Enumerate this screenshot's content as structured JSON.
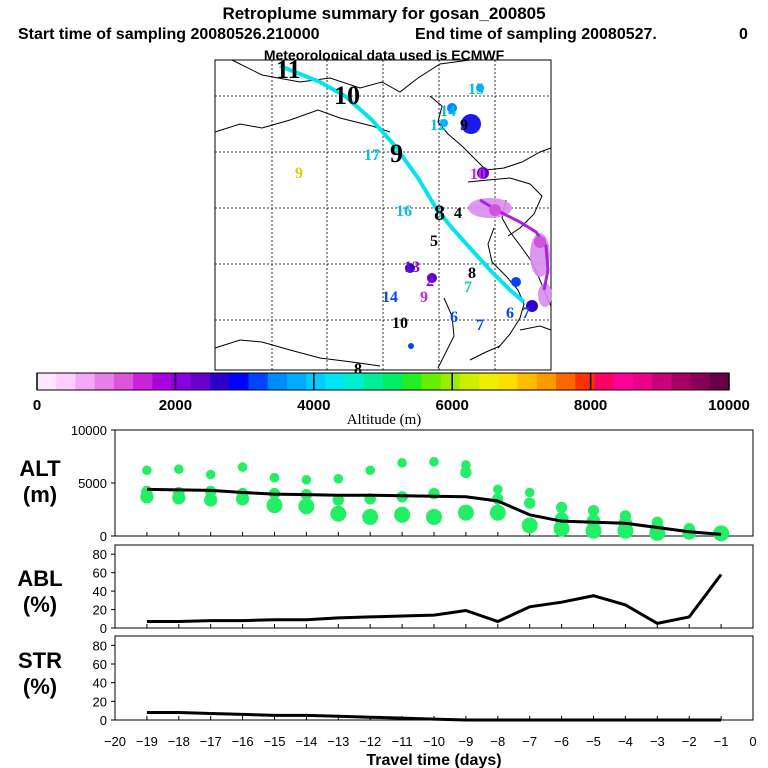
{
  "header": {
    "title": "Retroplume summary for gosan_200805",
    "start": "Start time of sampling 20080526.210000",
    "end": "End time of sampling 20080527.",
    "end_tail": "0",
    "met": "Meteorological data used is ECMWF"
  },
  "colorbar": {
    "label": "Altitude (m)",
    "ticks": [
      "0",
      "2000",
      "4000",
      "6000",
      "8000",
      "10000"
    ],
    "colors": [
      "#ffe6ff",
      "#ffccff",
      "#f5a8f5",
      "#ea7fea",
      "#dd55dd",
      "#cc22dd",
      "#aa00dd",
      "#8800dd",
      "#6600cc",
      "#2a00cc",
      "#0000ff",
      "#0044ff",
      "#0088ff",
      "#00aaff",
      "#00ccff",
      "#00e6ee",
      "#00eecc",
      "#00ee99",
      "#00ee66",
      "#22ee22",
      "#66ee00",
      "#99ee00",
      "#ccee00",
      "#eeee00",
      "#ffdd00",
      "#ffbb00",
      "#ff9900",
      "#ff6600",
      "#ff3300",
      "#ff0066",
      "#ff0099",
      "#ee0088",
      "#cc0077",
      "#aa0066",
      "#880055",
      "#660044"
    ]
  },
  "map": {
    "labels": [
      {
        "t": "11",
        "c": "#000000",
        "s": 26
      },
      {
        "t": "10",
        "c": "#000000",
        "s": 26
      },
      {
        "t": "15",
        "c": "#00bbee",
        "s": 16
      },
      {
        "t": "14",
        "c": "#00bbee",
        "s": 16
      },
      {
        "t": "12",
        "c": "#00bbee",
        "s": 16
      },
      {
        "t": "9",
        "c": "#000000",
        "s": 16
      },
      {
        "t": "17",
        "c": "#00bbee",
        "s": 16
      },
      {
        "t": "9",
        "c": "#000000",
        "s": 26
      },
      {
        "t": "9",
        "c": "#ddcc00",
        "s": 16
      },
      {
        "t": "10",
        "c": "#cc22dd",
        "s": 16
      },
      {
        "t": "16",
        "c": "#00bbee",
        "s": 16
      },
      {
        "t": "8",
        "c": "#000000",
        "s": 22
      },
      {
        "t": "4",
        "c": "#000000",
        "s": 16
      },
      {
        "t": "5",
        "c": "#000000",
        "s": 16
      },
      {
        "t": "13",
        "c": "#8800dd",
        "s": 16
      },
      {
        "t": "2",
        "c": "#8800dd",
        "s": 16
      },
      {
        "t": "8",
        "c": "#000000",
        "s": 16
      },
      {
        "t": "7",
        "c": "#00ddaa",
        "s": 16
      },
      {
        "t": "14",
        "c": "#0044ff",
        "s": 16
      },
      {
        "t": "9",
        "c": "#cc22dd",
        "s": 16
      },
      {
        "t": "10",
        "c": "#000000",
        "s": 16
      },
      {
        "t": "6",
        "c": "#0044ff",
        "s": 16
      },
      {
        "t": "7",
        "c": "#0044ff",
        "s": 16
      },
      {
        "t": "6",
        "c": "#0044ff",
        "s": 16
      },
      {
        "t": "7",
        "c": "#0044ff",
        "s": 16
      },
      {
        "t": "8",
        "c": "#000000",
        "s": 16
      }
    ]
  },
  "chart_data": [
    {
      "type": "scatter",
      "panel": "ALT",
      "ylabel": "ALT (m)",
      "ylim": [
        0,
        10000
      ],
      "yticks": [
        "0",
        "5000",
        "10000"
      ],
      "xlim": [
        -20,
        0
      ],
      "median_line": {
        "x": [
          -19,
          -18,
          -17,
          -16,
          -15,
          -14,
          -13,
          -12,
          -11,
          -10,
          -9,
          -8,
          -7,
          -6,
          -5,
          -4,
          -3,
          -2,
          -1
        ],
        "y": [
          4400,
          4350,
          4300,
          4100,
          3950,
          3900,
          3850,
          3850,
          3800,
          3750,
          3700,
          3300,
          2000,
          1400,
          1300,
          1200,
          800,
          400,
          150
        ]
      },
      "points": [
        {
          "x": -19,
          "y": 6200
        },
        {
          "x": -19,
          "y": 4200
        },
        {
          "x": -19,
          "y": 3700
        },
        {
          "x": -18,
          "y": 6300
        },
        {
          "x": -18,
          "y": 4100
        },
        {
          "x": -18,
          "y": 3600
        },
        {
          "x": -17,
          "y": 5800
        },
        {
          "x": -17,
          "y": 4200
        },
        {
          "x": -17,
          "y": 3400
        },
        {
          "x": -16,
          "y": 6500
        },
        {
          "x": -16,
          "y": 4000
        },
        {
          "x": -16,
          "y": 3500
        },
        {
          "x": -15,
          "y": 5500
        },
        {
          "x": -15,
          "y": 4000
        },
        {
          "x": -15,
          "y": 2900
        },
        {
          "x": -14,
          "y": 5300
        },
        {
          "x": -14,
          "y": 3900
        },
        {
          "x": -14,
          "y": 2800
        },
        {
          "x": -13,
          "y": 5400
        },
        {
          "x": -13,
          "y": 3400
        },
        {
          "x": -13,
          "y": 2100
        },
        {
          "x": -12,
          "y": 6200
        },
        {
          "x": -12,
          "y": 3500
        },
        {
          "x": -12,
          "y": 1800
        },
        {
          "x": -11,
          "y": 6900
        },
        {
          "x": -11,
          "y": 3700
        },
        {
          "x": -11,
          "y": 2000
        },
        {
          "x": -10,
          "y": 7000
        },
        {
          "x": -10,
          "y": 4000
        },
        {
          "x": -10,
          "y": 1800
        },
        {
          "x": -9,
          "y": 6700
        },
        {
          "x": -9,
          "y": 6000
        },
        {
          "x": -9,
          "y": 2200
        },
        {
          "x": -8,
          "y": 4400
        },
        {
          "x": -8,
          "y": 3500
        },
        {
          "x": -8,
          "y": 2200
        },
        {
          "x": -7,
          "y": 4100
        },
        {
          "x": -7,
          "y": 3100
        },
        {
          "x": -7,
          "y": 1000
        },
        {
          "x": -6,
          "y": 2700
        },
        {
          "x": -6,
          "y": 1600
        },
        {
          "x": -6,
          "y": 700
        },
        {
          "x": -5,
          "y": 2400
        },
        {
          "x": -5,
          "y": 1400
        },
        {
          "x": -5,
          "y": 500
        },
        {
          "x": -4,
          "y": 1900
        },
        {
          "x": -4,
          "y": 1200
        },
        {
          "x": -4,
          "y": 500
        },
        {
          "x": -3,
          "y": 1300
        },
        {
          "x": -3,
          "y": 700
        },
        {
          "x": -3,
          "y": 300
        },
        {
          "x": -2,
          "y": 700
        },
        {
          "x": -2,
          "y": 300
        },
        {
          "x": -1,
          "y": 250
        }
      ]
    },
    {
      "type": "line",
      "panel": "ABL",
      "ylabel": "ABL (%)",
      "ylim": [
        0,
        90
      ],
      "yticks": [
        "0",
        "20",
        "40",
        "60",
        "80"
      ],
      "x": [
        -19,
        -18,
        -17,
        -16,
        -15,
        -14,
        -13,
        -12,
        -11,
        -10,
        -9,
        -8,
        -7,
        -6,
        -5,
        -4,
        -3,
        -2,
        -1
      ],
      "y": [
        7,
        7,
        8,
        8,
        9,
        9,
        11,
        12,
        13,
        14,
        19,
        7,
        23,
        28,
        35,
        25,
        5,
        12,
        58
      ]
    },
    {
      "type": "line",
      "panel": "STR",
      "ylabel": "STR (%)",
      "ylim": [
        0,
        90
      ],
      "yticks": [
        "0",
        "20",
        "40",
        "60",
        "80"
      ],
      "x": [
        -19,
        -18,
        -17,
        -16,
        -15,
        -14,
        -13,
        -12,
        -11,
        -10,
        -9,
        -8,
        -7,
        -6,
        -5,
        -4,
        -3,
        -2,
        -1
      ],
      "y": [
        8,
        8,
        7,
        6,
        5,
        5,
        4,
        3,
        2,
        1,
        0,
        0,
        0,
        0,
        0,
        0,
        0,
        0,
        0
      ]
    }
  ],
  "axis": {
    "xticks": [
      "−20",
      "−19",
      "−18",
      "−17",
      "−16",
      "−15",
      "−14",
      "−13",
      "−12",
      "−11",
      "−10",
      "−9",
      "−8",
      "−7",
      "−6",
      "−5",
      "−4",
      "−3",
      "−2",
      "−1",
      "0"
    ],
    "xlabel": "Travel time (days)"
  },
  "panels": {
    "alt_l1": "ALT",
    "alt_l2": "(m)",
    "abl_l1": "ABL",
    "abl_l2": "(%)",
    "str_l1": "STR",
    "str_l2": "(%)"
  }
}
